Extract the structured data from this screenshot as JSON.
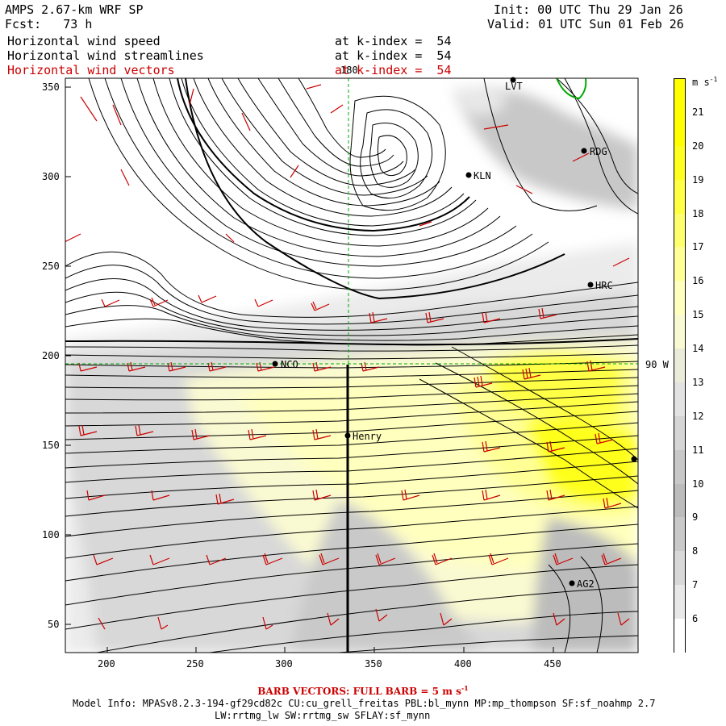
{
  "header": {
    "model": "AMPS 2.67-km WRF SP",
    "forecast": "Fcst:   73 h",
    "init": "Init: 00 UTC Thu 29 Jan 26",
    "valid": "Valid: 01 UTC Sun 01 Feb 26",
    "fields": [
      {
        "name": "Horizontal wind speed",
        "level": "at k-index =  54"
      },
      {
        "name": "Horizontal wind streamlines",
        "level": "at k-index =  54"
      },
      {
        "name": "Horizontal wind vectors",
        "level": "at k-index =  54"
      }
    ]
  },
  "map": {
    "x_ticks": [
      "200",
      "250",
      "300",
      "350",
      "400",
      "450"
    ],
    "y_ticks": [
      "350",
      "300",
      "250",
      "200",
      "150",
      "100",
      "50"
    ],
    "meridian_label": "180",
    "parallel_label": "90 W",
    "stations": [
      {
        "name": "LVT"
      },
      {
        "name": "RDG"
      },
      {
        "name": "KLN"
      },
      {
        "name": "HRC"
      },
      {
        "name": "NCO"
      },
      {
        "name": "Henry"
      },
      {
        "name": "AG2"
      },
      {
        "name": ""
      }
    ]
  },
  "colorbar": {
    "units": "m s",
    "units_exp": "-1",
    "labels": [
      "21",
      "20",
      "19",
      "18",
      "17",
      "16",
      "15",
      "14",
      "13",
      "12",
      "11",
      "10",
      "9",
      "8",
      "7",
      "6"
    ],
    "colors": [
      "#ffff00",
      "#ffff1f",
      "#ffff44",
      "#ffff6e",
      "#ffff96",
      "#ffffbe",
      "#fafad2",
      "#ebebd9",
      "#e2e2e2",
      "#d5d5d5",
      "#c8c8c8",
      "#bcbcbc",
      "#c9c9c9",
      "#d8d8d8",
      "#e8e8e8",
      "#ffffff"
    ]
  },
  "footer": {
    "barb_note": "BARB VECTORS:  FULL BARB = 5 m s",
    "barb_exp": "-1",
    "model_info": "Model Info: MPASv8.2.3-194-gf29cd82c CU:cu_grell_freitas PBL:bl_mynn MP:mp_thompson SF:sf_noahmp 2.7",
    "model_info2": "LW:rrtmg_lw SW:rrtmg_sw SFLAY:sf_mynn"
  }
}
